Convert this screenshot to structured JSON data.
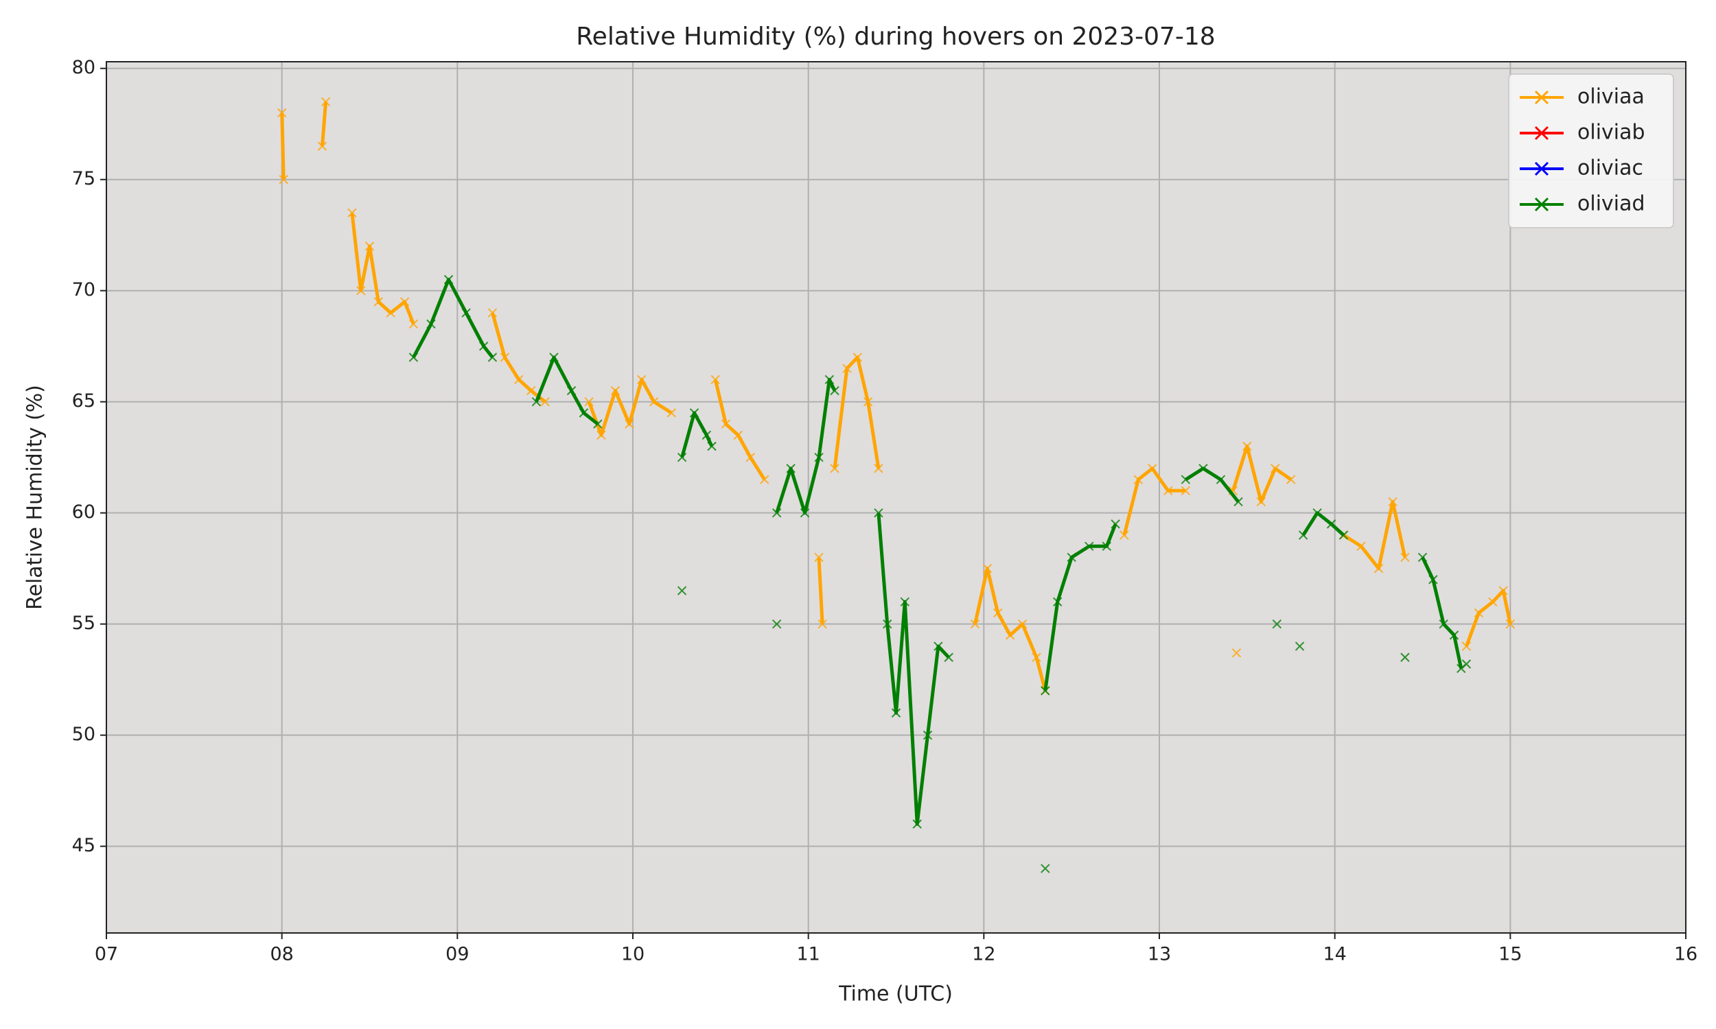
{
  "chart_data": {
    "type": "line",
    "title": "Relative Humidity (%) during hovers on 2023-07-18",
    "x_label": "Time (UTC)",
    "y_label": "Relative Humidity (%)",
    "xlim": [
      7,
      16
    ],
    "ylim": [
      41.1,
      80.3
    ],
    "xticks": [
      {
        "value": 7,
        "label": "07"
      },
      {
        "value": 8,
        "label": "08"
      },
      {
        "value": 9,
        "label": "09"
      },
      {
        "value": 10,
        "label": "10"
      },
      {
        "value": 11,
        "label": "11"
      },
      {
        "value": 12,
        "label": "12"
      },
      {
        "value": 13,
        "label": "13"
      },
      {
        "value": 14,
        "label": "14"
      },
      {
        "value": 15,
        "label": "15"
      },
      {
        "value": 16,
        "label": "16"
      }
    ],
    "yticks": [
      45,
      50,
      55,
      60,
      65,
      70,
      75,
      80
    ],
    "grid": true,
    "legend": "upper right",
    "series": [
      {
        "name": "oliviaa",
        "color": "#ffa500",
        "x": [
          8.0,
          8.01,
          null,
          8.23,
          8.25,
          null,
          8.4,
          8.45,
          8.5,
          8.55,
          8.62,
          8.7,
          8.75,
          null,
          9.2,
          9.27,
          9.35,
          9.42,
          9.5,
          null,
          9.75,
          9.82,
          9.9,
          9.98,
          10.05,
          10.12,
          10.22,
          null,
          10.47,
          10.53,
          10.6,
          10.67,
          10.75,
          null,
          11.06,
          11.08,
          null,
          11.15,
          11.22,
          11.28,
          11.34,
          11.4,
          null,
          11.95,
          12.02,
          12.08,
          12.15,
          12.22,
          12.3,
          12.35,
          null,
          12.8,
          12.88,
          12.96,
          13.05,
          13.15,
          null,
          13.42,
          13.5,
          13.58,
          13.66,
          13.75,
          null,
          13.44,
          null,
          14.05,
          14.15,
          14.25,
          14.33,
          14.4,
          null,
          14.75,
          14.82,
          14.9,
          14.96,
          15.0
        ],
        "values": [
          78,
          75,
          null,
          76.5,
          78.5,
          null,
          73.5,
          70,
          72,
          69.5,
          69,
          69.5,
          68.5,
          null,
          69,
          67,
          66,
          65.5,
          65,
          null,
          65,
          63.5,
          65.5,
          64,
          66,
          65,
          64.5,
          null,
          66,
          64,
          63.5,
          62.5,
          61.5,
          null,
          58,
          55,
          null,
          62,
          66.5,
          67,
          65,
          62,
          null,
          55,
          57.5,
          55.5,
          54.5,
          55,
          53.5,
          52,
          null,
          59,
          61.5,
          62,
          61,
          61,
          null,
          61,
          63,
          60.5,
          62,
          61.5,
          null,
          53.7,
          null,
          59,
          58.5,
          57.5,
          60.5,
          58,
          null,
          54,
          55.5,
          56,
          56.5,
          55
        ],
        "values_note_unused": null
      },
      {
        "name": "oliviab",
        "color": "#ff0000",
        "x": [],
        "values": []
      },
      {
        "name": "oliviac",
        "color": "#0000ff",
        "x": [],
        "values": []
      },
      {
        "name": "oliviad",
        "color": "#008000",
        "x": [
          8.75,
          8.85,
          8.95,
          9.05,
          9.15,
          9.2,
          null,
          9.45,
          9.55,
          9.65,
          9.72,
          9.8,
          null,
          10.28,
          10.35,
          10.42,
          10.45,
          null,
          10.28,
          null,
          10.82,
          null,
          10.82,
          10.9,
          10.98,
          11.06,
          11.12,
          11.15,
          null,
          11.4,
          11.45,
          11.5,
          11.55,
          11.62,
          11.68,
          11.74,
          11.8,
          null,
          12.35,
          null,
          12.35,
          12.42,
          12.5,
          12.6,
          12.7,
          12.75,
          null,
          13.15,
          13.25,
          13.35,
          13.45,
          null,
          13.67,
          null,
          13.8,
          null,
          13.82,
          13.9,
          13.98,
          14.05,
          null,
          14.4,
          null,
          14.5,
          14.56,
          14.62,
          14.68,
          14.72,
          null,
          14.75
        ],
        "values": [
          67,
          68.5,
          70.5,
          69,
          67.5,
          67,
          null,
          65,
          67,
          65.5,
          64.5,
          64,
          null,
          62.5,
          64.5,
          63.5,
          63,
          null,
          56.5,
          null,
          55,
          null,
          60,
          62,
          60,
          62.5,
          66,
          65.5,
          null,
          60,
          55,
          51,
          56,
          46,
          50,
          54,
          53.5,
          null,
          44,
          null,
          52,
          56,
          58,
          58.5,
          58.5,
          59.5,
          null,
          61.5,
          62,
          61.5,
          60.5,
          null,
          55,
          null,
          54,
          null,
          59,
          60,
          59.5,
          59,
          null,
          53.5,
          null,
          58,
          57,
          55,
          54.5,
          53,
          null,
          53.2
        ]
      }
    ]
  }
}
